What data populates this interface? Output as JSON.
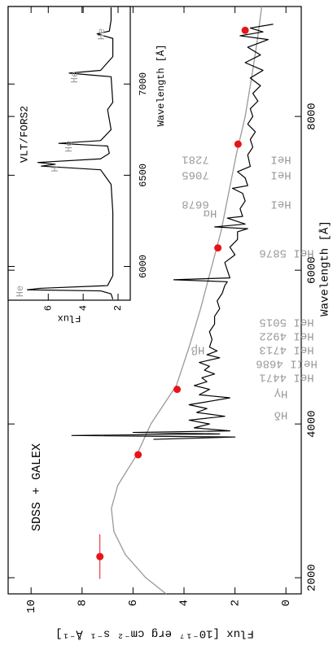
{
  "chart_data": [
    {
      "type": "line",
      "title": "SDSS + GALEX",
      "xlabel": "Wavelength [Å]",
      "ylabel": "Flux [10⁻¹⁷ erg cm⁻² s⁻¹ Å⁻¹]",
      "xlim": [
        1790,
        9430
      ],
      "ylim": [
        -0.6,
        10.9
      ],
      "xticks": [
        2000,
        4000,
        6000,
        8000
      ],
      "yticks": [
        0,
        2,
        4,
        6,
        8,
        10
      ],
      "series": [
        {
          "type": "line",
          "color": "#999999",
          "x": [
            1790,
            2000,
            2300,
            2600,
            2900,
            3200,
            3600,
            4000,
            4500,
            5000,
            5500,
            6000,
            6500,
            7000,
            7500,
            8000,
            8500,
            9000,
            9430
          ],
          "values": [
            4.7,
            5.5,
            6.3,
            6.75,
            6.85,
            6.6,
            5.85,
            5.3,
            4.3,
            3.8,
            3.35,
            2.95,
            2.55,
            2.25,
            1.95,
            1.6,
            1.35,
            1.12,
            0.95
          ]
        },
        {
          "type": "line",
          "color": "#000000",
          "x": [
            3800,
            3830,
            3850,
            3870,
            3890,
            3910,
            3950,
            4000,
            4050,
            4100,
            4150,
            4200,
            4250,
            4300,
            4340,
            4380,
            4450,
            4500,
            4550,
            4600,
            4650,
            4700,
            4750,
            4800,
            4861,
            4900,
            4950,
            5000,
            5100,
            5200,
            5300,
            5400,
            5500,
            5600,
            5700,
            5800,
            5850,
            5876,
            5900,
            6000,
            6100,
            6200,
            6300,
            6400,
            6500,
            6540,
            6563,
            6600,
            6678,
            6700,
            6800,
            6900,
            7000,
            7065,
            7100,
            7200,
            7281,
            7350,
            7500,
            7600,
            7700,
            7800,
            7900,
            8000,
            8100,
            8200,
            8300,
            8400,
            8500,
            8600,
            8700,
            8800,
            8900,
            9000,
            9050,
            9100,
            9150,
            9200
          ],
          "values": [
            5.2,
            2.0,
            8.4,
            2.6,
            6.0,
            2.2,
            3.6,
            3.0,
            3.8,
            2.4,
            3.5,
            3.1,
            3.8,
            2.9,
            2.2,
            3.4,
            3.0,
            3.6,
            3.1,
            3.3,
            2.8,
            3.2,
            3.0,
            3.4,
            2.6,
            3.1,
            2.7,
            3.0,
            2.9,
            3.0,
            2.8,
            2.8,
            2.6,
            2.7,
            2.5,
            2.4,
            2.3,
            4.4,
            2.2,
            2.3,
            2.4,
            2.0,
            2.2,
            1.9,
            1.9,
            1.5,
            2.8,
            1.6,
            2.3,
            1.7,
            1.8,
            1.6,
            1.7,
            2.1,
            1.5,
            1.6,
            1.9,
            1.4,
            1.5,
            1.3,
            1.4,
            1.2,
            1.5,
            1.3,
            1.4,
            1.1,
            1.3,
            1.0,
            1.4,
            0.9,
            1.6,
            1.0,
            1.5,
            0.7,
            1.8,
            0.9,
            1.4,
            0.5
          ]
        },
        {
          "type": "scatter",
          "color": "#e8141a",
          "x": [
            2275,
            3600,
            4450,
            6290,
            7640,
            9120
          ],
          "values": [
            7.3,
            5.8,
            4.27,
            2.67,
            1.88,
            1.6
          ],
          "xerr": [
            290,
            null,
            null,
            null,
            null,
            null
          ]
        }
      ],
      "annotations": [
        {
          "text": "Hδ"
        },
        {
          "text": "Hγ"
        },
        {
          "text": "HeI 4471"
        },
        {
          "text": "HeII 4686"
        },
        {
          "text": "HeI 4713"
        },
        {
          "text": "HeI 4922"
        },
        {
          "text": "HeI 5015"
        },
        {
          "text": "Hβ"
        },
        {
          "text": "HeI 5876"
        },
        {
          "text": "Hα"
        },
        {
          "text": "6678"
        },
        {
          "text": "HeI"
        },
        {
          "text": "7065"
        },
        {
          "text": "HeI"
        },
        {
          "text": "7281"
        },
        {
          "text": "HeI"
        }
      ]
    },
    {
      "type": "line",
      "title": "VLT/FORS2",
      "xlabel": "Wavelength [Å]",
      "ylabel": "Flux",
      "xlim": [
        5815,
        7425
      ],
      "ylim": [
        1.3,
        8.3
      ],
      "xticks": [
        6000,
        6500,
        7000
      ],
      "yticks": [
        2,
        4,
        6
      ],
      "series": [
        {
          "type": "line",
          "color": "#000000",
          "x": [
            5820,
            5850,
            5866,
            5872,
            5880,
            5895,
            5950,
            6100,
            6300,
            6450,
            6530,
            6550,
            6560,
            6570,
            6590,
            6620,
            6660,
            6675,
            6690,
            6750,
            6860,
            6900,
            7040,
            7060,
            7075,
            7150,
            7250,
            7275,
            7290,
            7350,
            7420
          ],
          "values": [
            2.3,
            2.4,
            3.0,
            7.2,
            6.5,
            2.6,
            2.3,
            2.3,
            2.3,
            2.4,
            3.0,
            6.4,
            5.6,
            6.6,
            3.0,
            2.5,
            2.6,
            5.4,
            3.0,
            2.4,
            2.6,
            2.3,
            2.4,
            4.8,
            3.0,
            2.3,
            2.3,
            3.2,
            2.5,
            2.4,
            2.4
          ]
        }
      ],
      "annotations": [
        {
          "text": "He"
        },
        {
          "text": "H"
        },
        {
          "text": "He"
        },
        {
          "text": "He"
        },
        {
          "text": "He"
        }
      ]
    }
  ]
}
